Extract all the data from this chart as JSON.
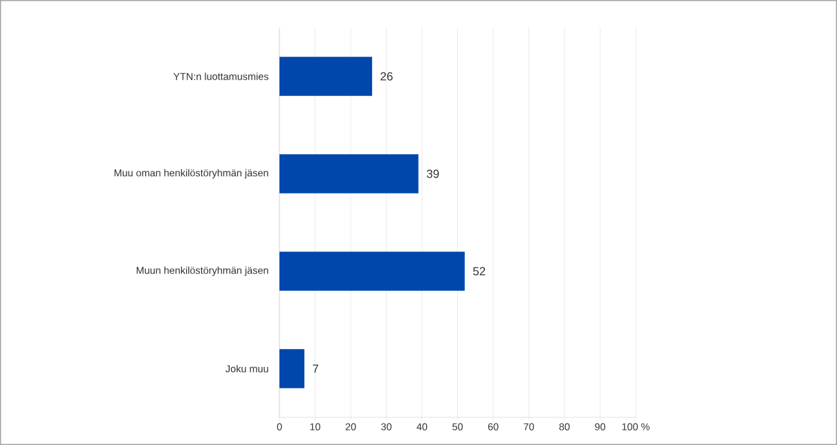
{
  "chart_data": {
    "type": "bar",
    "orientation": "horizontal",
    "categories": [
      "YTN:n luottamusmies",
      "Muu oman henkilöstöryhmän jäsen",
      "Muun henkilöstöryhmän jäsen",
      "Joku muu"
    ],
    "values": [
      26,
      39,
      52,
      7
    ],
    "color": "#0047ab",
    "xlim": [
      0,
      100
    ],
    "xticks": [
      0,
      10,
      20,
      30,
      40,
      50,
      60,
      70,
      80,
      90,
      {
        "value": 100,
        "label": "100 %"
      }
    ],
    "grid": "x",
    "data_labels": true
  }
}
